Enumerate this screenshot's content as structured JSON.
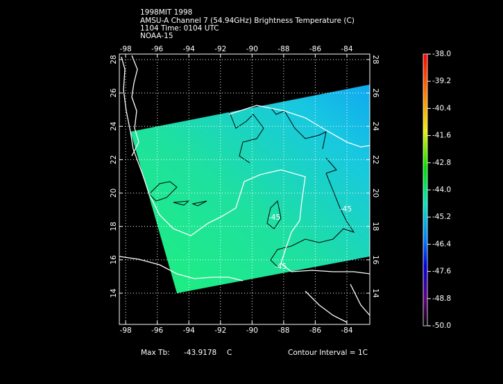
{
  "header": {
    "lines": [
      "1998MIT 1998",
      "AMSU-A Channel 7 (54.94GHz) Brightness Temperature (C)",
      "1104 Time: 0104 UTC",
      "NOAA-15"
    ]
  },
  "map": {
    "lonlim": [
      -98.4,
      -82.55
    ],
    "latlim": [
      12.13,
      28.33
    ],
    "lonticks": [
      -98,
      -96,
      -94,
      -92,
      -90,
      -88,
      -86,
      -84
    ],
    "latticks": [
      14,
      16,
      18,
      20,
      22,
      24,
      26,
      28
    ],
    "contour_labels": [
      "-45",
      "-45",
      "-45"
    ]
  },
  "colorbar": {
    "lim": [
      -50,
      -38
    ],
    "ticks": [
      {
        "value": -38,
        "label": "-38.0"
      },
      -39.2,
      -40.4,
      -41.6,
      -42.8,
      {
        "value": -44,
        "label": "-44.0"
      },
      -45.2,
      -46.4,
      -47.6,
      -48.8,
      {
        "value": -50,
        "label": "-50.0"
      }
    ]
  },
  "footer": {
    "max_label": "Max Tb:",
    "max_value": "-43.9178",
    "max_unit": "C",
    "contour_interval": "Contour Interval = 1C"
  }
}
